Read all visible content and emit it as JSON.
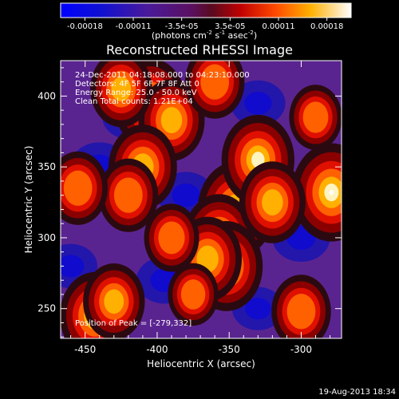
{
  "chart_data": {
    "type": "heatmap",
    "title": "Reconstructed RHESSI Image",
    "xlabel": "Heliocentric X (arcsec)",
    "ylabel": "Heliocentric Y (arcsec)",
    "x_ticks": [
      -450,
      -400,
      -350,
      -300
    ],
    "y_ticks": [
      250,
      300,
      350,
      400
    ],
    "xlim": [
      -467,
      -272
    ],
    "ylim": [
      229,
      425
    ],
    "colorbar": {
      "ticks": [
        "-0.00018",
        "-0.00011",
        "-3.5e-05",
        "3.5e-05",
        "0.00011",
        "0.00018"
      ],
      "min": -0.00018,
      "max": 0.00018,
      "unit_label": "(photons cm",
      "unit_exp1": "-2",
      "unit_mid": " s",
      "unit_exp2": "-1",
      "unit_mid2": " asec",
      "unit_exp3": "-2",
      "unit_end": ")"
    },
    "annotations": {
      "time_range": "24-Dec-2011 04:18:08.000 to 04:23:10.000",
      "detectors": "Detectors: 4F 5F 6F 7F 8F  Att 0",
      "energy_range": "Energy Range: 25.0 - 50.0 keV",
      "clean_counts": "Clean    Total counts: 1.21E+04",
      "peak_position": "Position of Peak = [-279,332]"
    },
    "peak": {
      "x": -279,
      "y": 332
    },
    "hotspots": [
      {
        "x": -279,
        "y": 332,
        "amp": 1.0
      },
      {
        "x": -345,
        "y": 320,
        "amp": 0.95
      },
      {
        "x": -357,
        "y": 300,
        "amp": 0.8
      },
      {
        "x": -352,
        "y": 280,
        "amp": 0.85
      },
      {
        "x": -365,
        "y": 285,
        "amp": 0.75
      },
      {
        "x": -330,
        "y": 355,
        "amp": 0.85
      },
      {
        "x": -320,
        "y": 325,
        "amp": 0.7
      },
      {
        "x": -405,
        "y": 395,
        "amp": 0.85
      },
      {
        "x": -390,
        "y": 383,
        "amp": 0.7
      },
      {
        "x": -425,
        "y": 405,
        "amp": 0.6
      },
      {
        "x": -410,
        "y": 350,
        "amp": 0.75
      },
      {
        "x": -420,
        "y": 330,
        "amp": 0.55
      },
      {
        "x": -443,
        "y": 245,
        "amp": 0.8
      },
      {
        "x": -430,
        "y": 255,
        "amp": 0.6
      },
      {
        "x": -455,
        "y": 335,
        "amp": 0.55
      },
      {
        "x": -360,
        "y": 410,
        "amp": 0.55
      },
      {
        "x": -300,
        "y": 248,
        "amp": 0.55
      },
      {
        "x": -390,
        "y": 300,
        "amp": 0.45
      },
      {
        "x": -375,
        "y": 260,
        "amp": 0.35
      },
      {
        "x": -290,
        "y": 385,
        "amp": 0.4
      }
    ],
    "coldspots": [
      {
        "x": -440,
        "y": 350,
        "amp": 0.7
      },
      {
        "x": -380,
        "y": 330,
        "amp": 0.6
      },
      {
        "x": -300,
        "y": 300,
        "amp": 0.65
      },
      {
        "x": -330,
        "y": 395,
        "amp": 0.55
      },
      {
        "x": -395,
        "y": 270,
        "amp": 0.6
      },
      {
        "x": -460,
        "y": 280,
        "amp": 0.5
      },
      {
        "x": -420,
        "y": 385,
        "amp": 0.45
      },
      {
        "x": -330,
        "y": 250,
        "amp": 0.45
      }
    ]
  },
  "footer": {
    "timestamp": "19-Aug-2013 18:34"
  }
}
